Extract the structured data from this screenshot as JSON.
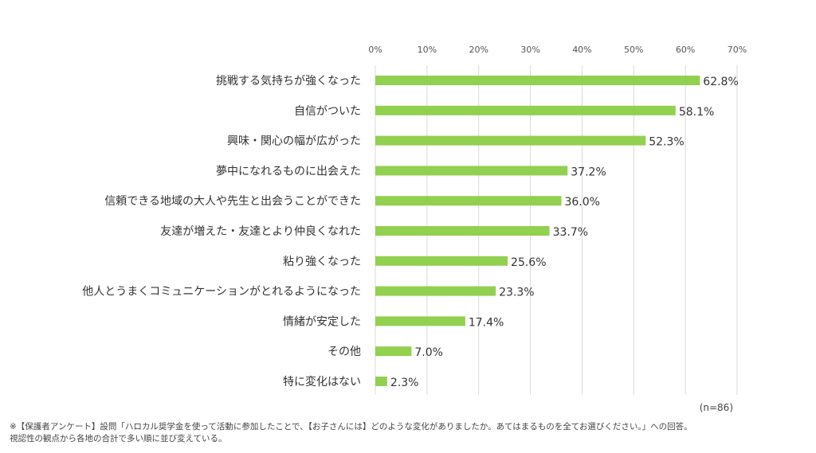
{
  "chart_data": {
    "type": "bar",
    "orientation": "horizontal",
    "categories": [
      "挑戦する気持ちが強くなった",
      "自信がついた",
      "興味・関心の幅が広がった",
      "夢中になれるものに出会えた",
      "信頼できる地域の大人や先生と出会うことができた",
      "友達が増えた・友達とより仲良くなれた",
      "粘り強くなった",
      "他人とうまくコミュニケーションがとれるようになった",
      "情緒が安定した",
      "その他",
      "特に変化はない"
    ],
    "values": [
      62.8,
      58.1,
      52.3,
      37.2,
      36.0,
      33.7,
      25.6,
      23.3,
      17.4,
      7.0,
      2.3
    ],
    "value_labels": [
      "62.8%",
      "58.1%",
      "52.3%",
      "37.2%",
      "36.0%",
      "33.7%",
      "25.6%",
      "23.3%",
      "17.4%",
      "7.0%",
      "2.3%"
    ],
    "xlim": [
      0,
      70
    ],
    "ticks": [
      0,
      10,
      20,
      30,
      40,
      50,
      60,
      70
    ],
    "tick_labels": [
      "0%",
      "10%",
      "20%",
      "30%",
      "40%",
      "50%",
      "60%",
      "70%"
    ],
    "axis_position": "top",
    "grid": true,
    "bar_color": "#92d050",
    "grid_color": "#d9d9d9"
  },
  "sample_note": "(n=86)",
  "footnotes": [
    "※【保護者アンケート】設問「ハロカル奨学金を使って活動に参加したことで、【お子さんには】どのような変化がありましたか。あてはまるものを全てお選びください。」への回答。",
    "視認性の観点から各地の合計で多い順に並び変えている。"
  ]
}
